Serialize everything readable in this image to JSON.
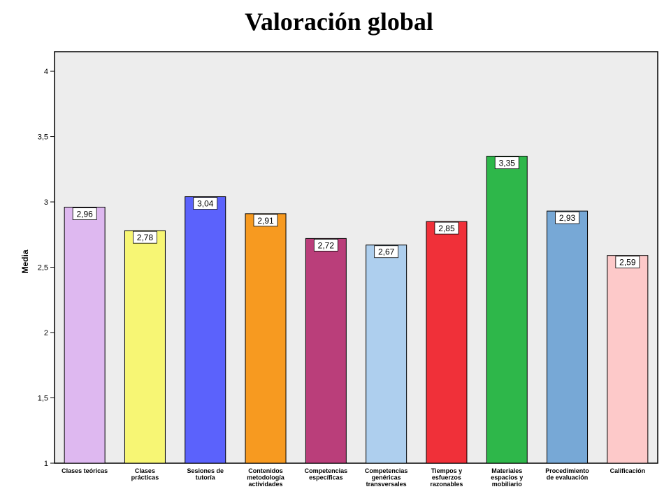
{
  "chart_data": {
    "type": "bar",
    "title": "Valoración global",
    "xlabel": "",
    "ylabel": "Media",
    "ylim": [
      1,
      4.15
    ],
    "yticks": [
      {
        "value": 1,
        "label": "1"
      },
      {
        "value": 1.5,
        "label": "1,5"
      },
      {
        "value": 2,
        "label": "2"
      },
      {
        "value": 2.5,
        "label": "2,5"
      },
      {
        "value": 3,
        "label": "3"
      },
      {
        "value": 3.5,
        "label": "3,5"
      },
      {
        "value": 4,
        "label": "4"
      }
    ],
    "categories": [
      [
        "Clases teóricas"
      ],
      [
        "Clases",
        "prácticas"
      ],
      [
        "Sesiones de",
        "tutoría"
      ],
      [
        "Contenidos",
        "metodología",
        "actividades"
      ],
      [
        "Competencias",
        "específicas"
      ],
      [
        "Competencias",
        "genéricas",
        "transversales"
      ],
      [
        "Tiempos y",
        "esfuerzos",
        "razonables"
      ],
      [
        "Materiales",
        "espacios y",
        "mobiliario"
      ],
      [
        "Procedimiento",
        "de evaluación"
      ],
      [
        "Calificación"
      ]
    ],
    "values": [
      2.96,
      2.78,
      3.04,
      2.91,
      2.72,
      2.67,
      2.85,
      3.35,
      2.93,
      2.59
    ],
    "value_labels": [
      "2,96",
      "2,78",
      "3,04",
      "2,91",
      "2,72",
      "2,67",
      "2,85",
      "3,35",
      "2,93",
      "2,59"
    ],
    "colors": [
      "#DEB8F0",
      "#F7F674",
      "#5B62FC",
      "#F79A20",
      "#BA3E7A",
      "#AECFEE",
      "#F03039",
      "#2EB74A",
      "#77A8D6",
      "#FDC9C9"
    ],
    "plot_background": "#EDEDED",
    "grid": false,
    "legend": "none"
  }
}
